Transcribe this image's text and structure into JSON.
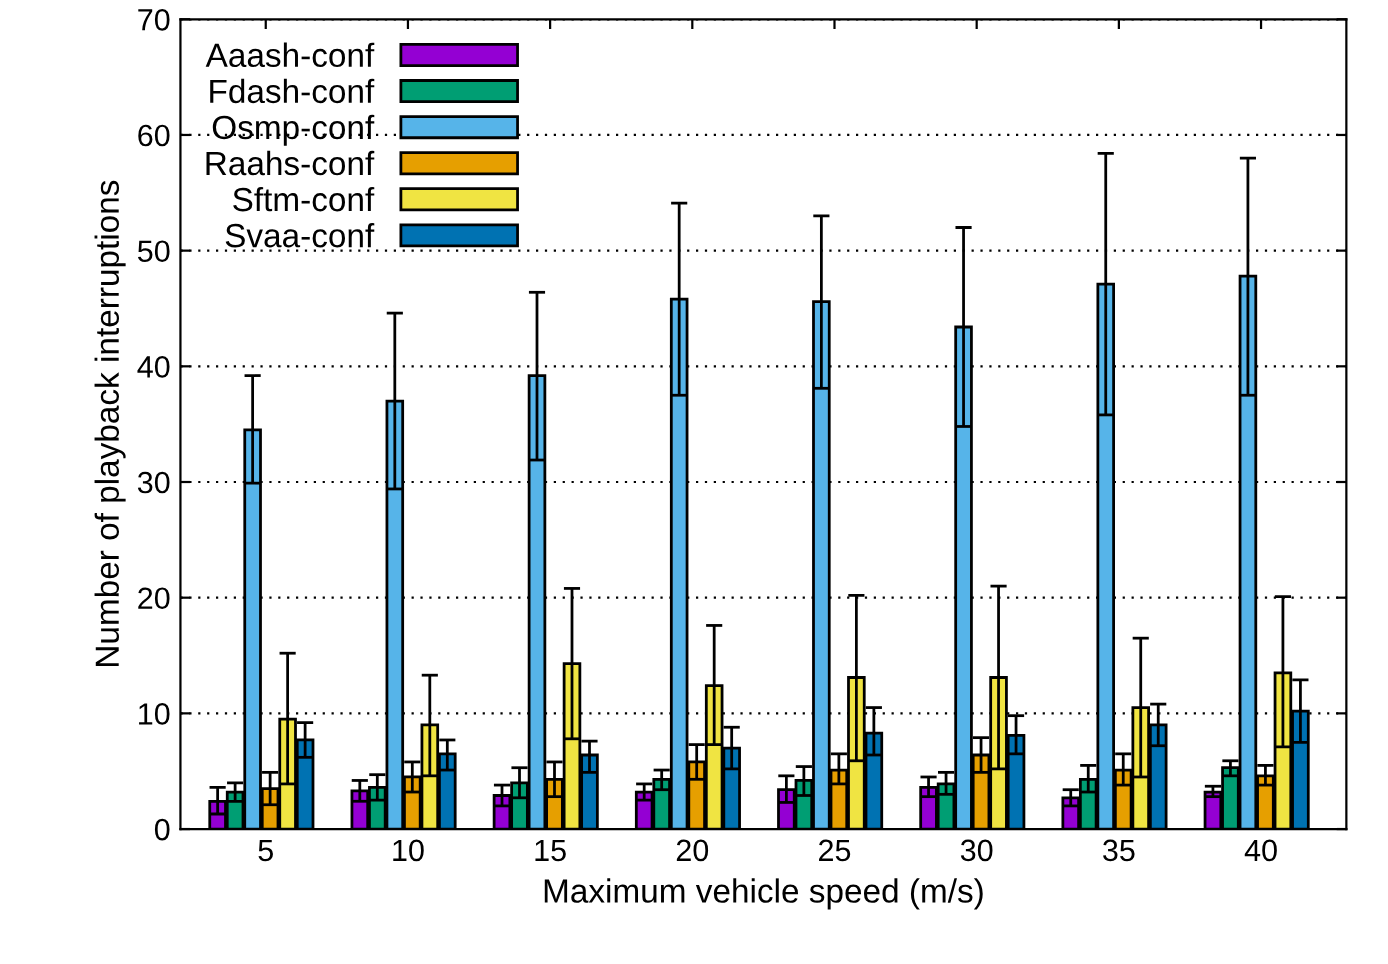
{
  "chart_data": {
    "type": "bar",
    "xlabel": "Maximum vehicle speed (m/s)",
    "ylabel": "Number of playback interruptions",
    "categories": [
      "5",
      "10",
      "15",
      "20",
      "25",
      "30",
      "35",
      "40"
    ],
    "ylim": [
      0,
      70
    ],
    "yticks": [
      0,
      10,
      20,
      30,
      40,
      50,
      60,
      70
    ],
    "grid": "y",
    "legend": "top left",
    "series": [
      {
        "name": "Aaash-conf",
        "color": "#9400d3",
        "values": [
          2.4,
          3.3,
          2.9,
          3.2,
          3.4,
          3.6,
          2.7,
          3.2
        ],
        "errors": [
          [
            1.3,
            3.6
          ],
          [
            2.4,
            4.2
          ],
          [
            2.0,
            3.8
          ],
          [
            2.5,
            3.9
          ],
          [
            2.3,
            4.6
          ],
          [
            2.8,
            4.5
          ],
          [
            2.0,
            3.4
          ],
          [
            2.8,
            3.7
          ]
        ]
      },
      {
        "name": "Fdash-conf",
        "color": "#009e73",
        "values": [
          3.2,
          3.6,
          4.0,
          4.3,
          4.2,
          3.9,
          4.3,
          5.3
        ],
        "errors": [
          [
            2.4,
            4.0
          ],
          [
            2.5,
            4.7
          ],
          [
            2.7,
            5.3
          ],
          [
            3.4,
            5.1
          ],
          [
            2.9,
            5.4
          ],
          [
            3.0,
            4.9
          ],
          [
            3.2,
            5.5
          ],
          [
            4.6,
            5.9
          ]
        ]
      },
      {
        "name": "Osmp-conf",
        "color": "#56b4e9",
        "values": [
          34.5,
          37.0,
          39.2,
          45.8,
          45.6,
          43.4,
          47.1,
          47.8
        ],
        "errors": [
          [
            29.9,
            39.2
          ],
          [
            29.4,
            44.6
          ],
          [
            31.9,
            46.4
          ],
          [
            37.5,
            54.1
          ],
          [
            38.1,
            53.0
          ],
          [
            34.8,
            52.0
          ],
          [
            35.8,
            58.4
          ],
          [
            37.5,
            58.0
          ]
        ]
      },
      {
        "name": "Raahs-conf",
        "color": "#e69f00",
        "values": [
          3.5,
          4.5,
          4.3,
          5.8,
          5.1,
          6.4,
          5.1,
          4.6
        ],
        "errors": [
          [
            2.1,
            4.9
          ],
          [
            3.2,
            5.8
          ],
          [
            2.8,
            5.8
          ],
          [
            4.3,
            7.3
          ],
          [
            3.9,
            6.5
          ],
          [
            4.9,
            7.9
          ],
          [
            3.8,
            6.5
          ],
          [
            3.8,
            5.5
          ]
        ]
      },
      {
        "name": "Sftm-conf",
        "color": "#f0e442",
        "values": [
          9.5,
          9.0,
          14.3,
          12.4,
          13.1,
          13.1,
          10.5,
          13.5
        ],
        "errors": [
          [
            3.9,
            15.2
          ],
          [
            4.6,
            13.3
          ],
          [
            7.8,
            20.8
          ],
          [
            7.3,
            17.6
          ],
          [
            5.9,
            20.2
          ],
          [
            5.2,
            21.0
          ],
          [
            4.5,
            16.5
          ],
          [
            7.1,
            20.1
          ]
        ]
      },
      {
        "name": "Svaa-conf",
        "color": "#0072b2",
        "values": [
          7.7,
          6.5,
          6.4,
          7.0,
          8.3,
          8.1,
          9.0,
          10.2
        ],
        "errors": [
          [
            6.2,
            9.2
          ],
          [
            5.1,
            7.7
          ],
          [
            4.9,
            7.6
          ],
          [
            5.2,
            8.8
          ],
          [
            6.4,
            10.5
          ],
          [
            6.5,
            9.8
          ],
          [
            7.2,
            10.8
          ],
          [
            7.5,
            12.9
          ]
        ]
      }
    ]
  }
}
